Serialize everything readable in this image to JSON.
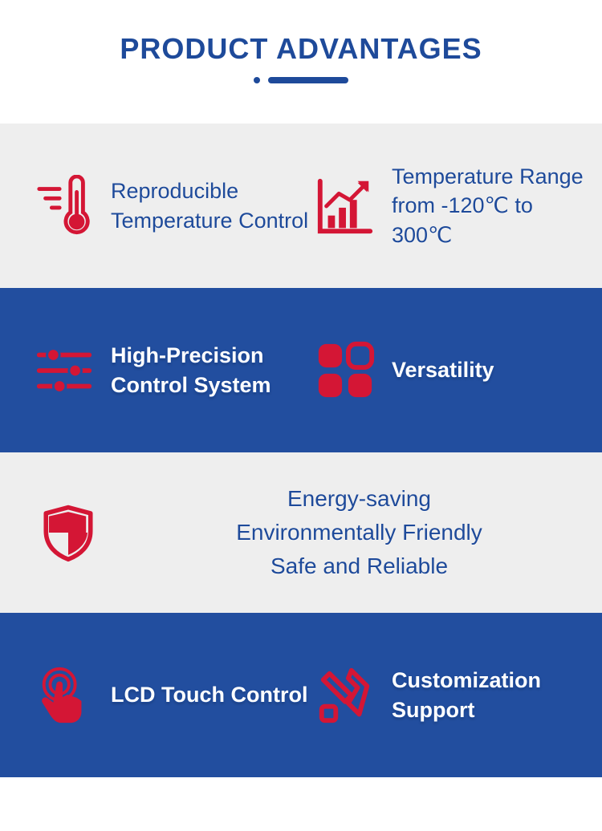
{
  "header": {
    "title": "PRODUCT ADVANTAGES",
    "title_color": "#1e4a9a",
    "dot_color": "#1e4a9a",
    "bar_color": "#1e4a9a"
  },
  "colors": {
    "icon_red": "#d41635",
    "dark_blue": "#1e4a9a",
    "light_gray": "#eeeeee",
    "section_blue": "#224e9f",
    "text_dark_blue": "#1e4a9a"
  },
  "sections": [
    {
      "bg": "#eeeeee",
      "layout": "two-col",
      "text_style": "normal",
      "items": [
        {
          "icon": "thermometer",
          "label": "Reproducible Temperature Control"
        },
        {
          "icon": "chart-up",
          "label": "Temperature Range from -120℃ to 300℃"
        }
      ]
    },
    {
      "bg": "#224e9f",
      "layout": "two-col",
      "text_style": "outline-white",
      "items": [
        {
          "icon": "sliders",
          "label": "High-Precision Control System"
        },
        {
          "icon": "grid",
          "label": "Versatility"
        }
      ]
    },
    {
      "bg": "#eeeeee",
      "layout": "one-col",
      "text_style": "normal",
      "items": [
        {
          "icon": "shield",
          "label": "Energy-saving\nEnvironmentally Friendly\nSafe and Reliable"
        }
      ]
    },
    {
      "bg": "#224e9f",
      "layout": "two-col",
      "text_style": "outline-white",
      "items": [
        {
          "icon": "touch",
          "label": "LCD Touch Control"
        },
        {
          "icon": "tools",
          "label": "Customization Support"
        }
      ]
    }
  ]
}
